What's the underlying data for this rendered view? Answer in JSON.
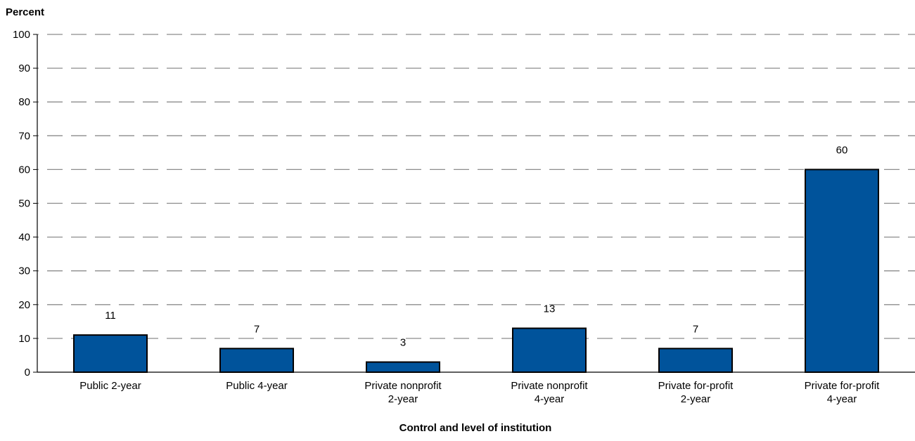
{
  "chart_data": {
    "type": "bar",
    "title": "",
    "ylabel": "Percent",
    "xlabel": "Control and level of institution",
    "ylim": [
      0,
      100
    ],
    "yticks": [
      0,
      10,
      20,
      30,
      40,
      50,
      60,
      70,
      80,
      90,
      100
    ],
    "grid": true,
    "bar_color": "#00539b",
    "categories": [
      [
        "Public 2-year"
      ],
      [
        "Public 4-year"
      ],
      [
        "Private nonprofit",
        "2-year"
      ],
      [
        "Private nonprofit",
        "4-year"
      ],
      [
        "Private for-profit",
        "2-year"
      ],
      [
        "Private for-profit",
        "4-year"
      ]
    ],
    "values": [
      11,
      7,
      3,
      13,
      7,
      60
    ]
  }
}
